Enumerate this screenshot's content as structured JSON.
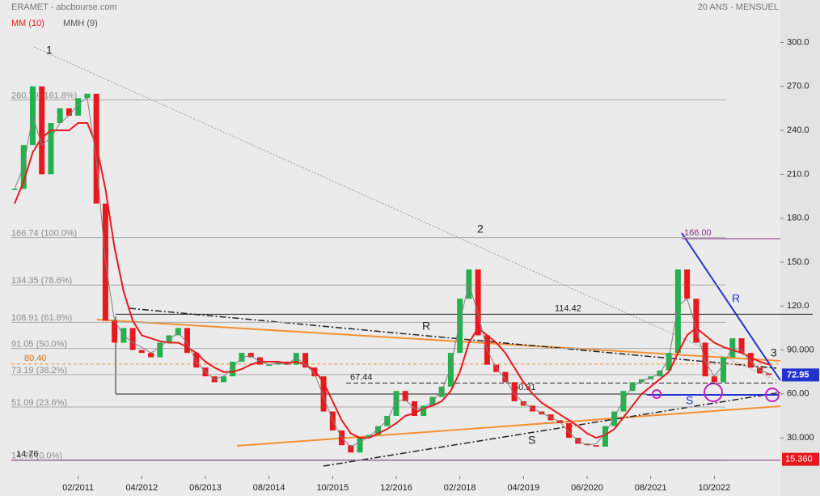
{
  "chart_data": {
    "type": "candlestick",
    "title": "ERAMET - abcbourse.com",
    "subtitle": "20 ANS - MENSUEL",
    "xlim": [
      0,
      84
    ],
    "xticks": [
      {
        "value": 7,
        "label": "02/2011"
      },
      {
        "value": 14,
        "label": "04/2012"
      },
      {
        "value": 21,
        "label": "06/2013"
      },
      {
        "value": 28,
        "label": "08/2014"
      },
      {
        "value": 35,
        "label": "10/2015"
      },
      {
        "value": 42,
        "label": "12/2016"
      },
      {
        "value": 49,
        "label": "02/2018"
      },
      {
        "value": 56,
        "label": "04/2019"
      },
      {
        "value": 63,
        "label": "06/2020"
      },
      {
        "value": 70,
        "label": "08/2021"
      },
      {
        "value": 77,
        "label": "10/2022"
      }
    ],
    "ylim": [
      3,
      329
    ],
    "yticks": [
      {
        "value": 300,
        "label": "300.0"
      },
      {
        "value": 270,
        "label": "270.0"
      },
      {
        "value": 240,
        "label": "240.0"
      },
      {
        "value": 210,
        "label": "210.0"
      },
      {
        "value": 180,
        "label": "180.0"
      },
      {
        "value": 150,
        "label": "150.0"
      },
      {
        "value": 120,
        "label": "120.0"
      },
      {
        "value": 90,
        "label": "90.000"
      },
      {
        "value": 60,
        "label": "60.00"
      },
      {
        "value": 30,
        "label": "30.000"
      }
    ],
    "up_color": "#22b14c",
    "down_color": "#e8191e",
    "closes": [
      200,
      230,
      270,
      210,
      245,
      255,
      250,
      262,
      265,
      190,
      110,
      95,
      105,
      90,
      88,
      85,
      95,
      100,
      105,
      88,
      78,
      72,
      68,
      72,
      82,
      88,
      85,
      80,
      80,
      82,
      80,
      88,
      78,
      72,
      48,
      35,
      25,
      20,
      30,
      32,
      38,
      45,
      62,
      55,
      45,
      52,
      58,
      65,
      88,
      125,
      145,
      100,
      80,
      75,
      68,
      55,
      52,
      48,
      46,
      42,
      40,
      30,
      26,
      25,
      24,
      38,
      48,
      62,
      68,
      70,
      72,
      76,
      88,
      145,
      125,
      95,
      72,
      68,
      85,
      98,
      88,
      78,
      74,
      72.95
    ],
    "series": [
      {
        "name": "MM (10)",
        "color": "#e8191e",
        "values": [
          190,
          205,
          225,
          235,
          240,
          240,
          240,
          245,
          245,
          230,
          200,
          160,
          130,
          110,
          100,
          98,
          96,
          95,
          95,
          92,
          88,
          82,
          78,
          75,
          75,
          77,
          80,
          82,
          82,
          82,
          81,
          82,
          80,
          76,
          68,
          55,
          42,
          33,
          30,
          30,
          33,
          36,
          40,
          45,
          47,
          50,
          52,
          55,
          62,
          75,
          95,
          105,
          100,
          95,
          88,
          78,
          68,
          60,
          54,
          50,
          46,
          42,
          38,
          33,
          30,
          32,
          36,
          44,
          52,
          60,
          65,
          70,
          75,
          88,
          100,
          105,
          100,
          95,
          92,
          90,
          88,
          85,
          82,
          80
        ]
      },
      {
        "name": "MMH (9)",
        "color": "#808080",
        "values": [
          200,
          215,
          250,
          230,
          235,
          245,
          250,
          258,
          262,
          220,
          150,
          110,
          100,
          95,
          92,
          88,
          92,
          97,
          102,
          95,
          82,
          75,
          70,
          72,
          78,
          85,
          86,
          82,
          80,
          81,
          80,
          85,
          80,
          74,
          58,
          42,
          30,
          24,
          27,
          31,
          36,
          42,
          55,
          56,
          50,
          50,
          55,
          62,
          78,
          110,
          135,
          115,
          90,
          78,
          70,
          60,
          54,
          50,
          47,
          44,
          41,
          34,
          28,
          25,
          26,
          33,
          44,
          56,
          65,
          69,
          71,
          74,
          84,
          120,
          125,
          105,
          82,
          72,
          80,
          92,
          90,
          82,
          76,
          74
        ]
      }
    ],
    "fib_levels": [
      {
        "value": 260.79,
        "label": "260.79 (161.8%)"
      },
      {
        "value": 166.74,
        "label": "166.74 (100.0%)"
      },
      {
        "value": 134.35,
        "label": "134.35 (78.6%)"
      },
      {
        "value": 108.91,
        "label": "108.91 (61.8%)"
      },
      {
        "value": 91.05,
        "label": "91.05 (50.0%)"
      },
      {
        "value": 73.19,
        "label": "73.19 (38.2%)"
      },
      {
        "value": 51.09,
        "label": "51.09 (23.6%)"
      },
      {
        "value": 14.76,
        "label": "14.76 (0.0%)"
      }
    ],
    "levels": [
      {
        "value": 114.42,
        "label": "114.42"
      },
      {
        "value": 80.4,
        "label": "80.40"
      },
      {
        "value": 67.44,
        "label": "67.44"
      },
      {
        "value": 60.31,
        "label": "60.31"
      },
      {
        "value": 166,
        "label": "166.00"
      },
      {
        "value": 14.76,
        "label": "14.76"
      }
    ],
    "low_tag": {
      "value": 15.36,
      "label": "15.360"
    },
    "wave_labels": [
      "1",
      "2",
      "3"
    ],
    "zone_labels": [
      "R",
      "R",
      "S",
      "S"
    ]
  }
}
